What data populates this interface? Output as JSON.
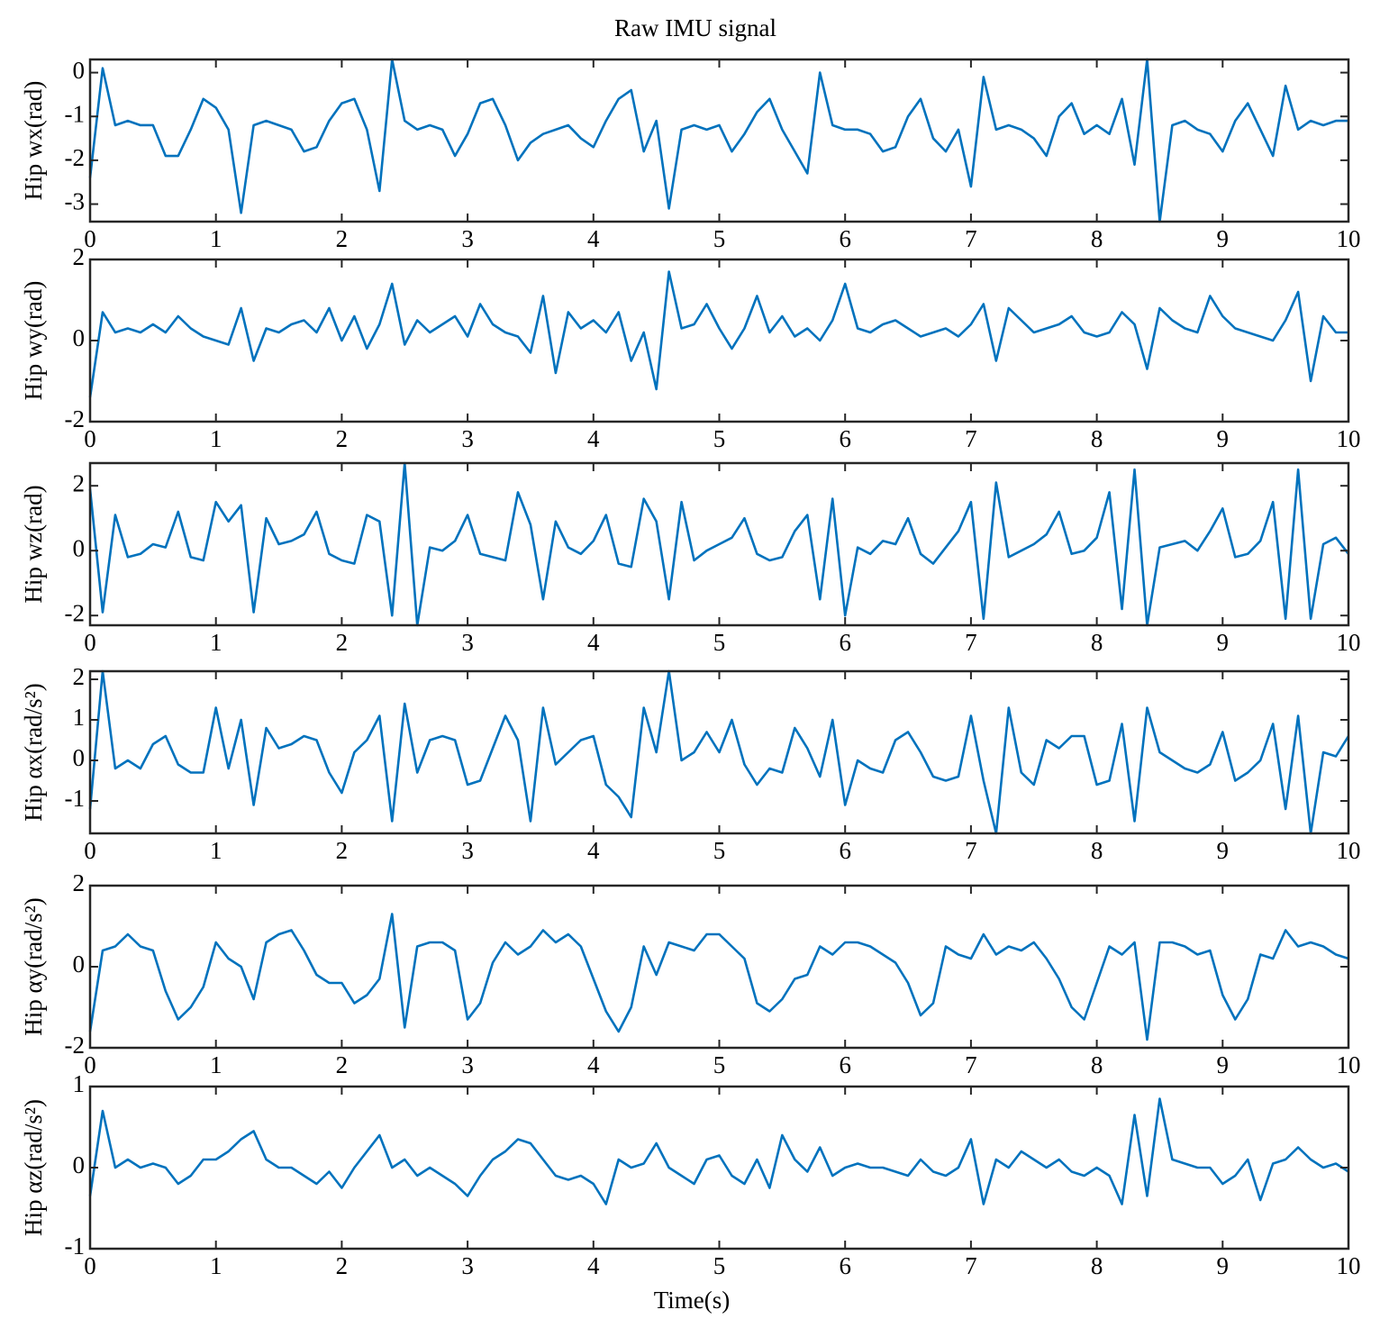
{
  "chart_data": [
    {
      "type": "line",
      "title": "Raw IMU signal",
      "y_label": "Hip wx(rad)",
      "color": "#0072BD",
      "x": [
        0,
        0.1,
        0.2,
        0.3,
        0.4,
        0.5,
        0.6,
        0.7,
        0.8,
        0.9,
        1,
        1.1,
        1.2,
        1.3,
        1.4,
        1.5,
        1.6,
        1.7,
        1.8,
        1.9,
        2,
        2.1,
        2.2,
        2.3,
        2.4,
        2.5,
        2.6,
        2.7,
        2.8,
        2.9,
        3,
        3.1,
        3.2,
        3.3,
        3.4,
        3.5,
        3.6,
        3.7,
        3.8,
        3.9,
        4,
        4.1,
        4.2,
        4.3,
        4.4,
        4.5,
        4.6,
        4.7,
        4.8,
        4.9,
        5,
        5.1,
        5.2,
        5.3,
        5.4,
        5.5,
        5.6,
        5.7,
        5.8,
        5.9,
        6,
        6.1,
        6.2,
        6.3,
        6.4,
        6.5,
        6.6,
        6.7,
        6.8,
        6.9,
        7,
        7.1,
        7.2,
        7.3,
        7.4,
        7.5,
        7.6,
        7.7,
        7.8,
        7.9,
        8,
        8.1,
        8.2,
        8.3,
        8.4,
        8.5,
        8.6,
        8.7,
        8.8,
        8.9,
        9,
        9.1,
        9.2,
        9.3,
        9.4,
        9.5,
        9.6,
        9.7,
        9.8,
        9.9,
        10
      ],
      "values": [
        -2.4,
        0.1,
        -1.2,
        -1.1,
        -1.2,
        -1.2,
        -1.9,
        -1.9,
        -1.3,
        -0.6,
        -0.8,
        -1.3,
        -3.2,
        -1.2,
        -1.1,
        -1.2,
        -1.3,
        -1.8,
        -1.7,
        -1.1,
        -0.7,
        -0.6,
        -1.3,
        -2.7,
        0.3,
        -1.1,
        -1.3,
        -1.2,
        -1.3,
        -1.9,
        -1.4,
        -0.7,
        -0.6,
        -1.2,
        -2.0,
        -1.6,
        -1.4,
        -1.3,
        -1.2,
        -1.5,
        -1.7,
        -1.1,
        -0.6,
        -0.4,
        -1.8,
        -1.1,
        -3.1,
        -1.3,
        -1.2,
        -1.3,
        -1.2,
        -1.8,
        -1.4,
        -0.9,
        -0.6,
        -1.3,
        -1.8,
        -2.3,
        0.0,
        -1.2,
        -1.3,
        -1.3,
        -1.4,
        -1.8,
        -1.7,
        -1.0,
        -0.6,
        -1.5,
        -1.8,
        -1.3,
        -2.6,
        -0.1,
        -1.3,
        -1.2,
        -1.3,
        -1.5,
        -1.9,
        -1.0,
        -0.7,
        -1.4,
        -1.2,
        -1.4,
        -0.6,
        -2.1,
        0.3,
        -3.4,
        -1.2,
        -1.1,
        -1.3,
        -1.4,
        -1.8,
        -1.1,
        -0.7,
        -1.3,
        -1.9,
        -0.3,
        -1.3,
        -1.1,
        -1.2,
        -1.1,
        -1.1
      ],
      "xlim": [
        0,
        10
      ],
      "xticks": [
        0,
        1,
        2,
        3,
        4,
        5,
        6,
        7,
        8,
        9,
        10
      ],
      "ylim": [
        -3.4,
        0.3
      ],
      "yticks": [
        -3,
        -2,
        -1,
        0
      ]
    },
    {
      "type": "line",
      "y_label": "Hip wy(rad)",
      "color": "#0072BD",
      "x": [
        0,
        0.1,
        0.2,
        0.3,
        0.4,
        0.5,
        0.6,
        0.7,
        0.8,
        0.9,
        1,
        1.1,
        1.2,
        1.3,
        1.4,
        1.5,
        1.6,
        1.7,
        1.8,
        1.9,
        2,
        2.1,
        2.2,
        2.3,
        2.4,
        2.5,
        2.6,
        2.7,
        2.8,
        2.9,
        3,
        3.1,
        3.2,
        3.3,
        3.4,
        3.5,
        3.6,
        3.7,
        3.8,
        3.9,
        4,
        4.1,
        4.2,
        4.3,
        4.4,
        4.5,
        4.6,
        4.7,
        4.8,
        4.9,
        5,
        5.1,
        5.2,
        5.3,
        5.4,
        5.5,
        5.6,
        5.7,
        5.8,
        5.9,
        6,
        6.1,
        6.2,
        6.3,
        6.4,
        6.5,
        6.6,
        6.7,
        6.8,
        6.9,
        7,
        7.1,
        7.2,
        7.3,
        7.4,
        7.5,
        7.6,
        7.7,
        7.8,
        7.9,
        8,
        8.1,
        8.2,
        8.3,
        8.4,
        8.5,
        8.6,
        8.7,
        8.8,
        8.9,
        9,
        9.1,
        9.2,
        9.3,
        9.4,
        9.5,
        9.6,
        9.7,
        9.8,
        9.9,
        10
      ],
      "values": [
        -1.4,
        0.7,
        0.2,
        0.3,
        0.2,
        0.4,
        0.2,
        0.6,
        0.3,
        0.1,
        0.0,
        -0.1,
        0.8,
        -0.5,
        0.3,
        0.2,
        0.4,
        0.5,
        0.2,
        0.8,
        0.0,
        0.6,
        -0.2,
        0.4,
        1.4,
        -0.1,
        0.5,
        0.2,
        0.4,
        0.6,
        0.1,
        0.9,
        0.4,
        0.2,
        0.1,
        -0.3,
        1.1,
        -0.8,
        0.7,
        0.3,
        0.5,
        0.2,
        0.7,
        -0.5,
        0.2,
        -1.2,
        1.7,
        0.3,
        0.4,
        0.9,
        0.3,
        -0.2,
        0.3,
        1.1,
        0.2,
        0.6,
        0.1,
        0.3,
        0.0,
        0.5,
        1.4,
        0.3,
        0.2,
        0.4,
        0.5,
        0.3,
        0.1,
        0.2,
        0.3,
        0.1,
        0.4,
        0.9,
        -0.5,
        0.8,
        0.5,
        0.2,
        0.3,
        0.4,
        0.6,
        0.2,
        0.1,
        0.2,
        0.7,
        0.4,
        -0.7,
        0.8,
        0.5,
        0.3,
        0.2,
        1.1,
        0.6,
        0.3,
        0.2,
        0.1,
        0.0,
        0.5,
        1.2,
        -1.0,
        0.6,
        0.2,
        0.2
      ],
      "xlim": [
        0,
        10
      ],
      "xticks": [
        0,
        1,
        2,
        3,
        4,
        5,
        6,
        7,
        8,
        9,
        10
      ],
      "ylim": [
        -2,
        2
      ],
      "yticks": [
        -2,
        0,
        2
      ]
    },
    {
      "type": "line",
      "y_label": "Hip wz(rad)",
      "color": "#0072BD",
      "x": [
        0,
        0.1,
        0.2,
        0.3,
        0.4,
        0.5,
        0.6,
        0.7,
        0.8,
        0.9,
        1,
        1.1,
        1.2,
        1.3,
        1.4,
        1.5,
        1.6,
        1.7,
        1.8,
        1.9,
        2,
        2.1,
        2.2,
        2.3,
        2.4,
        2.5,
        2.6,
        2.7,
        2.8,
        2.9,
        3,
        3.1,
        3.2,
        3.3,
        3.4,
        3.5,
        3.6,
        3.7,
        3.8,
        3.9,
        4,
        4.1,
        4.2,
        4.3,
        4.4,
        4.5,
        4.6,
        4.7,
        4.8,
        4.9,
        5,
        5.1,
        5.2,
        5.3,
        5.4,
        5.5,
        5.6,
        5.7,
        5.8,
        5.9,
        6,
        6.1,
        6.2,
        6.3,
        6.4,
        6.5,
        6.6,
        6.7,
        6.8,
        6.9,
        7,
        7.1,
        7.2,
        7.3,
        7.4,
        7.5,
        7.6,
        7.7,
        7.8,
        7.9,
        8,
        8.1,
        8.2,
        8.3,
        8.4,
        8.5,
        8.6,
        8.7,
        8.8,
        8.9,
        9,
        9.1,
        9.2,
        9.3,
        9.4,
        9.5,
        9.6,
        9.7,
        9.8,
        9.9,
        10
      ],
      "values": [
        1.9,
        -1.9,
        1.1,
        -0.2,
        -0.1,
        0.2,
        0.1,
        1.2,
        -0.2,
        -0.3,
        1.5,
        0.9,
        1.4,
        -1.9,
        1.0,
        0.2,
        0.3,
        0.5,
        1.2,
        -0.1,
        -0.3,
        -0.4,
        1.1,
        0.9,
        -2.0,
        2.7,
        -2.3,
        0.1,
        0.0,
        0.3,
        1.1,
        -0.1,
        -0.2,
        -0.3,
        1.8,
        0.8,
        -1.5,
        0.9,
        0.1,
        -0.1,
        0.3,
        1.1,
        -0.4,
        -0.5,
        1.6,
        0.9,
        -1.5,
        1.5,
        -0.3,
        0.0,
        0.2,
        0.4,
        1.0,
        -0.1,
        -0.3,
        -0.2,
        0.6,
        1.1,
        -1.5,
        1.6,
        -2.0,
        0.1,
        -0.1,
        0.3,
        0.2,
        1.0,
        -0.1,
        -0.4,
        0.1,
        0.6,
        1.5,
        -2.1,
        2.1,
        -0.2,
        0.0,
        0.2,
        0.5,
        1.2,
        -0.1,
        0.0,
        0.4,
        1.8,
        -1.8,
        2.5,
        -2.3,
        0.1,
        0.2,
        0.3,
        0.0,
        0.6,
        1.3,
        -0.2,
        -0.1,
        0.3,
        1.5,
        -2.1,
        2.5,
        -2.1,
        0.2,
        0.4,
        -0.1
      ],
      "xlim": [
        0,
        10
      ],
      "xticks": [
        0,
        1,
        2,
        3,
        4,
        5,
        6,
        7,
        8,
        9,
        10
      ],
      "ylim": [
        -2.3,
        2.7
      ],
      "yticks": [
        -2,
        0,
        2
      ]
    },
    {
      "type": "line",
      "y_label": "Hip αx(rad/s²)",
      "color": "#0072BD",
      "x": [
        0,
        0.1,
        0.2,
        0.3,
        0.4,
        0.5,
        0.6,
        0.7,
        0.8,
        0.9,
        1,
        1.1,
        1.2,
        1.3,
        1.4,
        1.5,
        1.6,
        1.7,
        1.8,
        1.9,
        2,
        2.1,
        2.2,
        2.3,
        2.4,
        2.5,
        2.6,
        2.7,
        2.8,
        2.9,
        3,
        3.1,
        3.2,
        3.3,
        3.4,
        3.5,
        3.6,
        3.7,
        3.8,
        3.9,
        4,
        4.1,
        4.2,
        4.3,
        4.4,
        4.5,
        4.6,
        4.7,
        4.8,
        4.9,
        5,
        5.1,
        5.2,
        5.3,
        5.4,
        5.5,
        5.6,
        5.7,
        5.8,
        5.9,
        6,
        6.1,
        6.2,
        6.3,
        6.4,
        6.5,
        6.6,
        6.7,
        6.8,
        6.9,
        7,
        7.1,
        7.2,
        7.3,
        7.4,
        7.5,
        7.6,
        7.7,
        7.8,
        7.9,
        8,
        8.1,
        8.2,
        8.3,
        8.4,
        8.5,
        8.6,
        8.7,
        8.8,
        8.9,
        9,
        9.1,
        9.2,
        9.3,
        9.4,
        9.5,
        9.6,
        9.7,
        9.8,
        9.9,
        10
      ],
      "values": [
        -1.2,
        2.2,
        -0.2,
        0.0,
        -0.2,
        0.4,
        0.6,
        -0.1,
        -0.3,
        -0.3,
        1.3,
        -0.2,
        1.0,
        -1.1,
        0.8,
        0.3,
        0.4,
        0.6,
        0.5,
        -0.3,
        -0.8,
        0.2,
        0.5,
        1.1,
        -1.5,
        1.4,
        -0.3,
        0.5,
        0.6,
        0.5,
        -0.6,
        -0.5,
        0.3,
        1.1,
        0.5,
        -1.5,
        1.3,
        -0.1,
        0.2,
        0.5,
        0.6,
        -0.6,
        -0.9,
        -1.4,
        1.3,
        0.2,
        2.2,
        0.0,
        0.2,
        0.7,
        0.2,
        1.0,
        -0.1,
        -0.6,
        -0.2,
        -0.3,
        0.8,
        0.3,
        -0.4,
        1.0,
        -1.1,
        0.0,
        -0.2,
        -0.3,
        0.5,
        0.7,
        0.2,
        -0.4,
        -0.5,
        -0.4,
        1.1,
        -0.5,
        -1.8,
        1.3,
        -0.3,
        -0.6,
        0.5,
        0.3,
        0.6,
        0.6,
        -0.6,
        -0.5,
        0.9,
        -1.5,
        1.3,
        0.2,
        0.0,
        -0.2,
        -0.3,
        -0.1,
        0.7,
        -0.5,
        -0.3,
        0.0,
        0.9,
        -1.2,
        1.1,
        -1.8,
        0.2,
        0.1,
        0.6
      ],
      "xlim": [
        0,
        10
      ],
      "xticks": [
        0,
        1,
        2,
        3,
        4,
        5,
        6,
        7,
        8,
        9,
        10
      ],
      "ylim": [
        -1.8,
        2.2
      ],
      "yticks": [
        -1,
        0,
        1,
        2
      ]
    },
    {
      "type": "line",
      "y_label": "Hip αy(rad/s²)",
      "color": "#0072BD",
      "x": [
        0,
        0.1,
        0.2,
        0.3,
        0.4,
        0.5,
        0.6,
        0.7,
        0.8,
        0.9,
        1,
        1.1,
        1.2,
        1.3,
        1.4,
        1.5,
        1.6,
        1.7,
        1.8,
        1.9,
        2,
        2.1,
        2.2,
        2.3,
        2.4,
        2.5,
        2.6,
        2.7,
        2.8,
        2.9,
        3,
        3.1,
        3.2,
        3.3,
        3.4,
        3.5,
        3.6,
        3.7,
        3.8,
        3.9,
        4,
        4.1,
        4.2,
        4.3,
        4.4,
        4.5,
        4.6,
        4.7,
        4.8,
        4.9,
        5,
        5.1,
        5.2,
        5.3,
        5.4,
        5.5,
        5.6,
        5.7,
        5.8,
        5.9,
        6,
        6.1,
        6.2,
        6.3,
        6.4,
        6.5,
        6.6,
        6.7,
        6.8,
        6.9,
        7,
        7.1,
        7.2,
        7.3,
        7.4,
        7.5,
        7.6,
        7.7,
        7.8,
        7.9,
        8,
        8.1,
        8.2,
        8.3,
        8.4,
        8.5,
        8.6,
        8.7,
        8.8,
        8.9,
        9,
        9.1,
        9.2,
        9.3,
        9.4,
        9.5,
        9.6,
        9.7,
        9.8,
        9.9,
        10
      ],
      "values": [
        -1.6,
        0.4,
        0.5,
        0.8,
        0.5,
        0.4,
        -0.6,
        -1.3,
        -1.0,
        -0.5,
        0.6,
        0.2,
        0.0,
        -0.8,
        0.6,
        0.8,
        0.9,
        0.4,
        -0.2,
        -0.4,
        -0.4,
        -0.9,
        -0.7,
        -0.3,
        1.3,
        -1.5,
        0.5,
        0.6,
        0.6,
        0.4,
        -1.3,
        -0.9,
        0.1,
        0.6,
        0.3,
        0.5,
        0.9,
        0.6,
        0.8,
        0.5,
        -0.3,
        -1.1,
        -1.6,
        -1.0,
        0.5,
        -0.2,
        0.6,
        0.5,
        0.4,
        0.8,
        0.8,
        0.5,
        0.2,
        -0.9,
        -1.1,
        -0.8,
        -0.3,
        -0.2,
        0.5,
        0.3,
        0.6,
        0.6,
        0.5,
        0.3,
        0.1,
        -0.4,
        -1.2,
        -0.9,
        0.5,
        0.3,
        0.2,
        0.8,
        0.3,
        0.5,
        0.4,
        0.6,
        0.2,
        -0.3,
        -1.0,
        -1.3,
        -0.4,
        0.5,
        0.3,
        0.6,
        -1.8,
        0.6,
        0.6,
        0.5,
        0.3,
        0.4,
        -0.7,
        -1.3,
        -0.8,
        0.3,
        0.2,
        0.9,
        0.5,
        0.6,
        0.5,
        0.3,
        0.2
      ],
      "xlim": [
        0,
        10
      ],
      "xticks": [
        0,
        1,
        2,
        3,
        4,
        5,
        6,
        7,
        8,
        9,
        10
      ],
      "ylim": [
        -2,
        2
      ],
      "yticks": [
        -2,
        0,
        2
      ]
    },
    {
      "type": "line",
      "y_label": "Hip αz(rad/s²)",
      "x_label": "Time(s)",
      "color": "#0072BD",
      "x": [
        0,
        0.1,
        0.2,
        0.3,
        0.4,
        0.5,
        0.6,
        0.7,
        0.8,
        0.9,
        1,
        1.1,
        1.2,
        1.3,
        1.4,
        1.5,
        1.6,
        1.7,
        1.8,
        1.9,
        2,
        2.1,
        2.2,
        2.3,
        2.4,
        2.5,
        2.6,
        2.7,
        2.8,
        2.9,
        3,
        3.1,
        3.2,
        3.3,
        3.4,
        3.5,
        3.6,
        3.7,
        3.8,
        3.9,
        4,
        4.1,
        4.2,
        4.3,
        4.4,
        4.5,
        4.6,
        4.7,
        4.8,
        4.9,
        5,
        5.1,
        5.2,
        5.3,
        5.4,
        5.5,
        5.6,
        5.7,
        5.8,
        5.9,
        6,
        6.1,
        6.2,
        6.3,
        6.4,
        6.5,
        6.6,
        6.7,
        6.8,
        6.9,
        7,
        7.1,
        7.2,
        7.3,
        7.4,
        7.5,
        7.6,
        7.7,
        7.8,
        7.9,
        8,
        8.1,
        8.2,
        8.3,
        8.4,
        8.5,
        8.6,
        8.7,
        8.8,
        8.9,
        9,
        9.1,
        9.2,
        9.3,
        9.4,
        9.5,
        9.6,
        9.7,
        9.8,
        9.9,
        10
      ],
      "values": [
        -0.35,
        0.7,
        0.0,
        0.1,
        0.0,
        0.05,
        0.0,
        -0.2,
        -0.1,
        0.1,
        0.1,
        0.2,
        0.35,
        0.45,
        0.1,
        0.0,
        0.0,
        -0.1,
        -0.2,
        -0.05,
        -0.25,
        0.0,
        0.2,
        0.4,
        0.0,
        0.1,
        -0.1,
        0.0,
        -0.1,
        -0.2,
        -0.35,
        -0.1,
        0.1,
        0.2,
        0.35,
        0.3,
        0.1,
        -0.1,
        -0.15,
        -0.1,
        -0.2,
        -0.45,
        0.1,
        0.0,
        0.05,
        0.3,
        0.0,
        -0.1,
        -0.2,
        0.1,
        0.15,
        -0.1,
        -0.2,
        0.1,
        -0.25,
        0.4,
        0.1,
        -0.05,
        0.25,
        -0.1,
        0.0,
        0.05,
        0.0,
        0.0,
        -0.05,
        -0.1,
        0.1,
        -0.05,
        -0.1,
        0.0,
        0.35,
        -0.45,
        0.1,
        0.0,
        0.2,
        0.1,
        0.0,
        0.1,
        -0.05,
        -0.1,
        0.0,
        -0.1,
        -0.45,
        0.65,
        -0.35,
        0.85,
        0.1,
        0.05,
        0.0,
        0.0,
        -0.2,
        -0.1,
        0.1,
        -0.4,
        0.05,
        0.1,
        0.25,
        0.1,
        0.0,
        0.05,
        -0.05
      ],
      "xlim": [
        0,
        10
      ],
      "xticks": [
        0,
        1,
        2,
        3,
        4,
        5,
        6,
        7,
        8,
        9,
        10
      ],
      "ylim": [
        -1,
        1
      ],
      "yticks": [
        -1,
        0,
        1
      ]
    }
  ]
}
